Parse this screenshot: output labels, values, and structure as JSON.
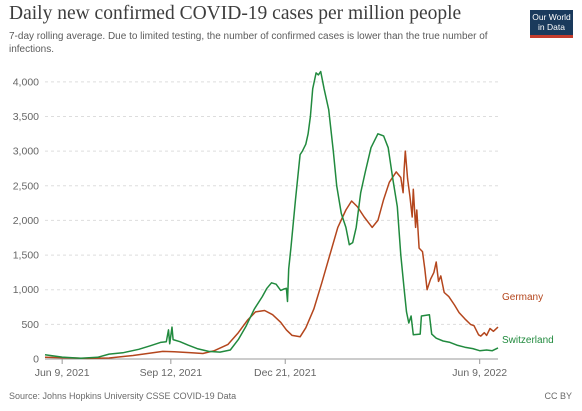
{
  "logo": {
    "line1": "Our World",
    "line2": "in Data"
  },
  "footer": {
    "source": "Source: Johns Hopkins University CSSE COVID-19 Data",
    "license": "CC BY"
  },
  "colors": {
    "germany": "#b4461d",
    "switzerland": "#218a3e",
    "grid": "#dddddd",
    "axis": "#999999"
  },
  "chart_data": {
    "type": "line",
    "title": "Daily new confirmed COVID-19 cases per million people",
    "subtitle": "7-day rolling average. Due to limited testing, the number of confirmed cases is lower than the true number of infections.",
    "x_domain": [
      "2021-05-25",
      "2022-06-25"
    ],
    "ylim": [
      0,
      4200
    ],
    "yticks": [
      0,
      500,
      1000,
      1500,
      2000,
      2500,
      3000,
      3500,
      4000
    ],
    "ytick_labels": [
      "0",
      "500",
      "1,000",
      "1,500",
      "2,000",
      "2,500",
      "3,000",
      "3,500",
      "4,000"
    ],
    "xticks": [
      {
        "date": "2021-06-09",
        "label": "Jun 9, 2021"
      },
      {
        "date": "2021-09-12",
        "label": "Sep 12, 2021"
      },
      {
        "date": "2021-12-21",
        "label": "Dec 21, 2021"
      },
      {
        "date": "2022-06-09",
        "label": "Jun 9, 2022"
      }
    ],
    "grid": true,
    "series": [
      {
        "name": "Germany",
        "color": "#b4461d",
        "points": [
          [
            "2021-05-25",
            25
          ],
          [
            "2021-06-09",
            18
          ],
          [
            "2021-07-01",
            8
          ],
          [
            "2021-07-20",
            15
          ],
          [
            "2021-08-10",
            50
          ],
          [
            "2021-08-25",
            85
          ],
          [
            "2021-09-05",
            110
          ],
          [
            "2021-09-15",
            105
          ],
          [
            "2021-09-30",
            90
          ],
          [
            "2021-10-10",
            80
          ],
          [
            "2021-10-20",
            120
          ],
          [
            "2021-11-01",
            210
          ],
          [
            "2021-11-10",
            380
          ],
          [
            "2021-11-18",
            560
          ],
          [
            "2021-11-25",
            680
          ],
          [
            "2021-12-03",
            700
          ],
          [
            "2021-12-10",
            640
          ],
          [
            "2021-12-17",
            530
          ],
          [
            "2021-12-22",
            420
          ],
          [
            "2021-12-27",
            340
          ],
          [
            "2022-01-03",
            320
          ],
          [
            "2022-01-08",
            450
          ],
          [
            "2022-01-15",
            720
          ],
          [
            "2022-01-22",
            1100
          ],
          [
            "2022-01-29",
            1500
          ],
          [
            "2022-02-05",
            1900
          ],
          [
            "2022-02-12",
            2150
          ],
          [
            "2022-02-17",
            2280
          ],
          [
            "2022-02-22",
            2200
          ],
          [
            "2022-02-28",
            2050
          ],
          [
            "2022-03-07",
            1900
          ],
          [
            "2022-03-12",
            2000
          ],
          [
            "2022-03-17",
            2300
          ],
          [
            "2022-03-22",
            2550
          ],
          [
            "2022-03-28",
            2700
          ],
          [
            "2022-04-01",
            2620
          ],
          [
            "2022-04-03",
            2400
          ],
          [
            "2022-04-04",
            2750
          ],
          [
            "2022-04-05",
            3000
          ],
          [
            "2022-04-07",
            2600
          ],
          [
            "2022-04-09",
            2350
          ],
          [
            "2022-04-11",
            2050
          ],
          [
            "2022-04-12",
            2450
          ],
          [
            "2022-04-14",
            1900
          ],
          [
            "2022-04-15",
            2150
          ],
          [
            "2022-04-17",
            1600
          ],
          [
            "2022-04-20",
            1550
          ],
          [
            "2022-04-22",
            1300
          ],
          [
            "2022-04-24",
            1000
          ],
          [
            "2022-04-27",
            1150
          ],
          [
            "2022-04-30",
            1250
          ],
          [
            "2022-05-02",
            1400
          ],
          [
            "2022-05-04",
            1120
          ],
          [
            "2022-05-06",
            1200
          ],
          [
            "2022-05-09",
            960
          ],
          [
            "2022-05-13",
            900
          ],
          [
            "2022-05-18",
            780
          ],
          [
            "2022-05-22",
            670
          ],
          [
            "2022-05-27",
            580
          ],
          [
            "2022-06-01",
            500
          ],
          [
            "2022-06-04",
            480
          ],
          [
            "2022-06-08",
            350
          ],
          [
            "2022-06-10",
            330
          ],
          [
            "2022-06-13",
            380
          ],
          [
            "2022-06-15",
            340
          ],
          [
            "2022-06-18",
            440
          ],
          [
            "2022-06-21",
            400
          ],
          [
            "2022-06-25",
            460
          ]
        ]
      },
      {
        "name": "Switzerland",
        "color": "#218a3e",
        "points": [
          [
            "2021-05-25",
            60
          ],
          [
            "2021-06-09",
            28
          ],
          [
            "2021-06-25",
            12
          ],
          [
            "2021-07-10",
            25
          ],
          [
            "2021-07-20",
            70
          ],
          [
            "2021-08-01",
            90
          ],
          [
            "2021-08-15",
            140
          ],
          [
            "2021-08-25",
            190
          ],
          [
            "2021-09-03",
            240
          ],
          [
            "2021-09-08",
            250
          ],
          [
            "2021-09-10",
            420
          ],
          [
            "2021-09-11",
            220
          ],
          [
            "2021-09-13",
            460
          ],
          [
            "2021-09-14",
            280
          ],
          [
            "2021-09-20",
            250
          ],
          [
            "2021-09-27",
            200
          ],
          [
            "2021-10-05",
            150
          ],
          [
            "2021-10-15",
            110
          ],
          [
            "2021-10-25",
            100
          ],
          [
            "2021-11-03",
            130
          ],
          [
            "2021-11-10",
            280
          ],
          [
            "2021-11-17",
            480
          ],
          [
            "2021-11-24",
            720
          ],
          [
            "2021-12-01",
            900
          ],
          [
            "2021-12-05",
            1020
          ],
          [
            "2021-12-09",
            1100
          ],
          [
            "2021-12-13",
            1080
          ],
          [
            "2021-12-17",
            990
          ],
          [
            "2021-12-20",
            1010
          ],
          [
            "2021-12-22",
            1020
          ],
          [
            "2021-12-23",
            830
          ],
          [
            "2021-12-24",
            1300
          ],
          [
            "2021-12-26",
            1600
          ],
          [
            "2021-12-30",
            2300
          ],
          [
            "2022-01-03",
            2950
          ],
          [
            "2022-01-05",
            3000
          ],
          [
            "2022-01-08",
            3100
          ],
          [
            "2022-01-10",
            3250
          ],
          [
            "2022-01-12",
            3500
          ],
          [
            "2022-01-14",
            3900
          ],
          [
            "2022-01-17",
            4130
          ],
          [
            "2022-01-19",
            4100
          ],
          [
            "2022-01-21",
            4150
          ],
          [
            "2022-01-24",
            3900
          ],
          [
            "2022-01-28",
            3600
          ],
          [
            "2022-02-01",
            3000
          ],
          [
            "2022-02-04",
            2500
          ],
          [
            "2022-02-08",
            2100
          ],
          [
            "2022-02-12",
            1900
          ],
          [
            "2022-02-15",
            1650
          ],
          [
            "2022-02-18",
            1680
          ],
          [
            "2022-02-21",
            1900
          ],
          [
            "2022-02-25",
            2400
          ],
          [
            "2022-03-01",
            2700
          ],
          [
            "2022-03-06",
            3050
          ],
          [
            "2022-03-12",
            3250
          ],
          [
            "2022-03-17",
            3220
          ],
          [
            "2022-03-21",
            3050
          ],
          [
            "2022-03-25",
            2600
          ],
          [
            "2022-03-29",
            2200
          ],
          [
            "2022-04-01",
            1500
          ],
          [
            "2022-04-04",
            1000
          ],
          [
            "2022-04-06",
            680
          ],
          [
            "2022-04-08",
            520
          ],
          [
            "2022-04-10",
            620
          ],
          [
            "2022-04-12",
            350
          ],
          [
            "2022-04-18",
            360
          ],
          [
            "2022-04-19",
            620
          ],
          [
            "2022-04-26",
            640
          ],
          [
            "2022-04-28",
            360
          ],
          [
            "2022-05-02",
            300
          ],
          [
            "2022-05-08",
            260
          ],
          [
            "2022-05-14",
            240
          ],
          [
            "2022-05-20",
            200
          ],
          [
            "2022-05-27",
            170
          ],
          [
            "2022-06-03",
            150
          ],
          [
            "2022-06-09",
            120
          ],
          [
            "2022-06-15",
            130
          ],
          [
            "2022-06-20",
            120
          ],
          [
            "2022-06-25",
            160
          ]
        ]
      }
    ]
  }
}
